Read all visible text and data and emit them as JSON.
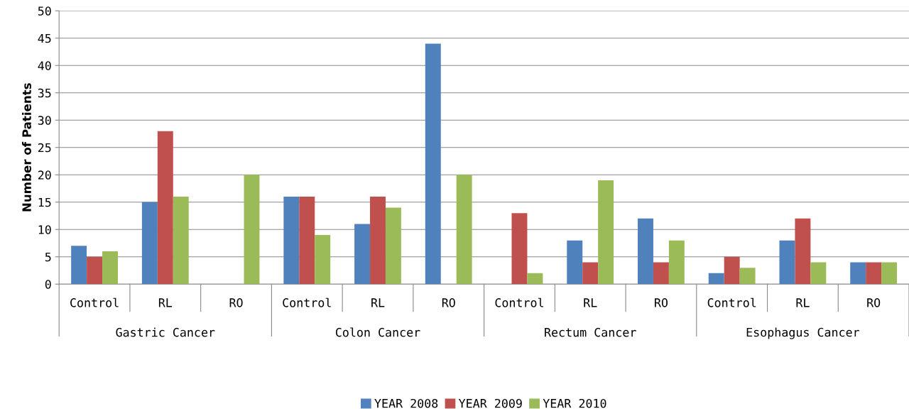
{
  "chart_data": {
    "type": "bar",
    "ylabel": "Number of Patients",
    "categories": [
      "Control",
      "RL",
      "RO",
      "Control",
      "RL",
      "RO",
      "Control",
      "RL",
      "RO",
      "Control",
      "RL",
      "RO"
    ],
    "annotations": [
      "Gastric Cancer",
      "Colon Cancer",
      "Rectum Cancer",
      "Esophagus Cancer"
    ],
    "series": [
      {
        "name": "YEAR 2008",
        "color": "#4f81bd",
        "values": [
          7,
          15,
          0,
          16,
          11,
          44,
          0,
          8,
          12,
          2,
          8,
          4
        ]
      },
      {
        "name": "YEAR 2009",
        "color": "#c0504d",
        "values": [
          5,
          28,
          0,
          16,
          16,
          0,
          13,
          4,
          4,
          5,
          12,
          4
        ]
      },
      {
        "name": "YEAR 2010",
        "color": "#9bbb59",
        "values": [
          6,
          16,
          20,
          9,
          14,
          20,
          2,
          19,
          8,
          3,
          4,
          4
        ]
      }
    ],
    "ylim": [
      0,
      50
    ],
    "yticks": [
      0,
      5,
      10,
      15,
      20,
      25,
      30,
      35,
      40,
      45,
      50
    ],
    "grid": "y",
    "legend": "bottom"
  }
}
